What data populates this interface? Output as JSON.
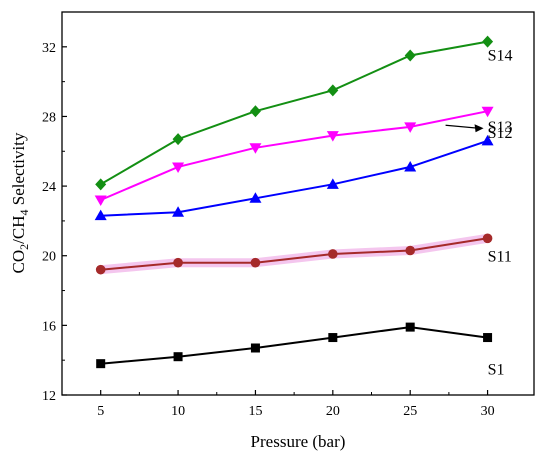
{
  "chart_data": {
    "type": "line",
    "xlabel": "Pressure (bar)",
    "ylabel": {
      "parts": [
        {
          "text": "CO",
          "sub": false
        },
        {
          "text": "2",
          "sub": true
        },
        {
          "text": "/CH",
          "sub": false
        },
        {
          "text": "4",
          "sub": true
        },
        {
          "text": " Selectivity",
          "sub": false
        }
      ]
    },
    "x": [
      5,
      10,
      15,
      20,
      25,
      30
    ],
    "xlim": [
      2.5,
      33
    ],
    "ylim": [
      12,
      34
    ],
    "x_ticks": [
      5,
      10,
      15,
      20,
      25,
      30
    ],
    "y_ticks": [
      12,
      16,
      20,
      24,
      28,
      32
    ],
    "grid": false,
    "legend": "none",
    "series": [
      {
        "name": "S14",
        "color": "#138f13",
        "marker": "diamond",
        "values": [
          24.1,
          26.7,
          28.3,
          29.5,
          31.5,
          32.3
        ]
      },
      {
        "name": "S13",
        "color": "#ff00ff",
        "marker": "triangle-down",
        "values": [
          23.2,
          25.1,
          26.2,
          26.9,
          27.4,
          28.3
        ]
      },
      {
        "name": "S12",
        "color": "#0000ff",
        "marker": "triangle-up",
        "values": [
          22.3,
          22.5,
          23.3,
          24.1,
          25.1,
          26.6
        ]
      },
      {
        "name": "S11",
        "color": "#a52a2a",
        "marker": "circle",
        "highlight": "#f4c6ee",
        "values": [
          19.2,
          19.6,
          19.6,
          20.1,
          20.3,
          21.0
        ]
      },
      {
        "name": "S1",
        "color": "#000000",
        "marker": "square",
        "values": [
          13.8,
          14.2,
          14.7,
          15.3,
          15.9,
          15.3
        ]
      }
    ],
    "annotations": [
      {
        "text": "S14",
        "series": "S14"
      },
      {
        "text": "S13",
        "series": "S13",
        "arrow": true
      },
      {
        "text": "S12",
        "series": "S12"
      },
      {
        "text": "S11",
        "series": "S11"
      },
      {
        "text": "S1",
        "series": "S1"
      }
    ]
  }
}
